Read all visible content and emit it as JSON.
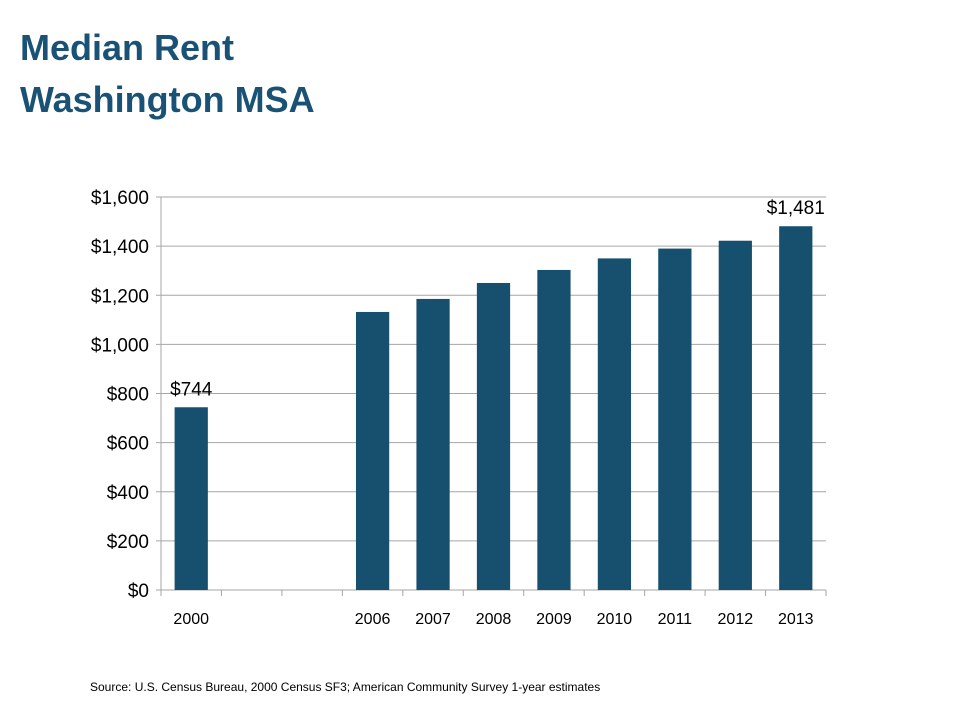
{
  "slide": {
    "title_line1": "Median Rent",
    "title_line2": "Washington MSA",
    "source": "Source: U.S. Census Bureau, 2000 Census SF3; American Community Survey 1-year estimates"
  },
  "colors": {
    "bar": "#17506f",
    "title": "#1a5276",
    "grid": "#a6a6a6"
  },
  "chart_data": {
    "type": "bar",
    "categories": [
      "2000",
      "",
      "",
      "2006",
      "2007",
      "2008",
      "2009",
      "2010",
      "2011",
      "2012",
      "2013"
    ],
    "values": [
      744,
      null,
      null,
      1132,
      1185,
      1250,
      1303,
      1350,
      1390,
      1422,
      1481
    ],
    "data_labels": [
      {
        "category_index": 0,
        "text": "$744"
      },
      {
        "category_index": 10,
        "text": "$1,481"
      }
    ],
    "y_ticks": [
      0,
      200,
      400,
      600,
      800,
      1000,
      1200,
      1400,
      1600
    ],
    "y_tick_labels": [
      "$0",
      "$200",
      "$400",
      "$600",
      "$800",
      "$1,000",
      "$1,200",
      "$1,400",
      "$1,600"
    ],
    "ylim": [
      0,
      1600
    ],
    "grid": true,
    "legend": "none"
  }
}
